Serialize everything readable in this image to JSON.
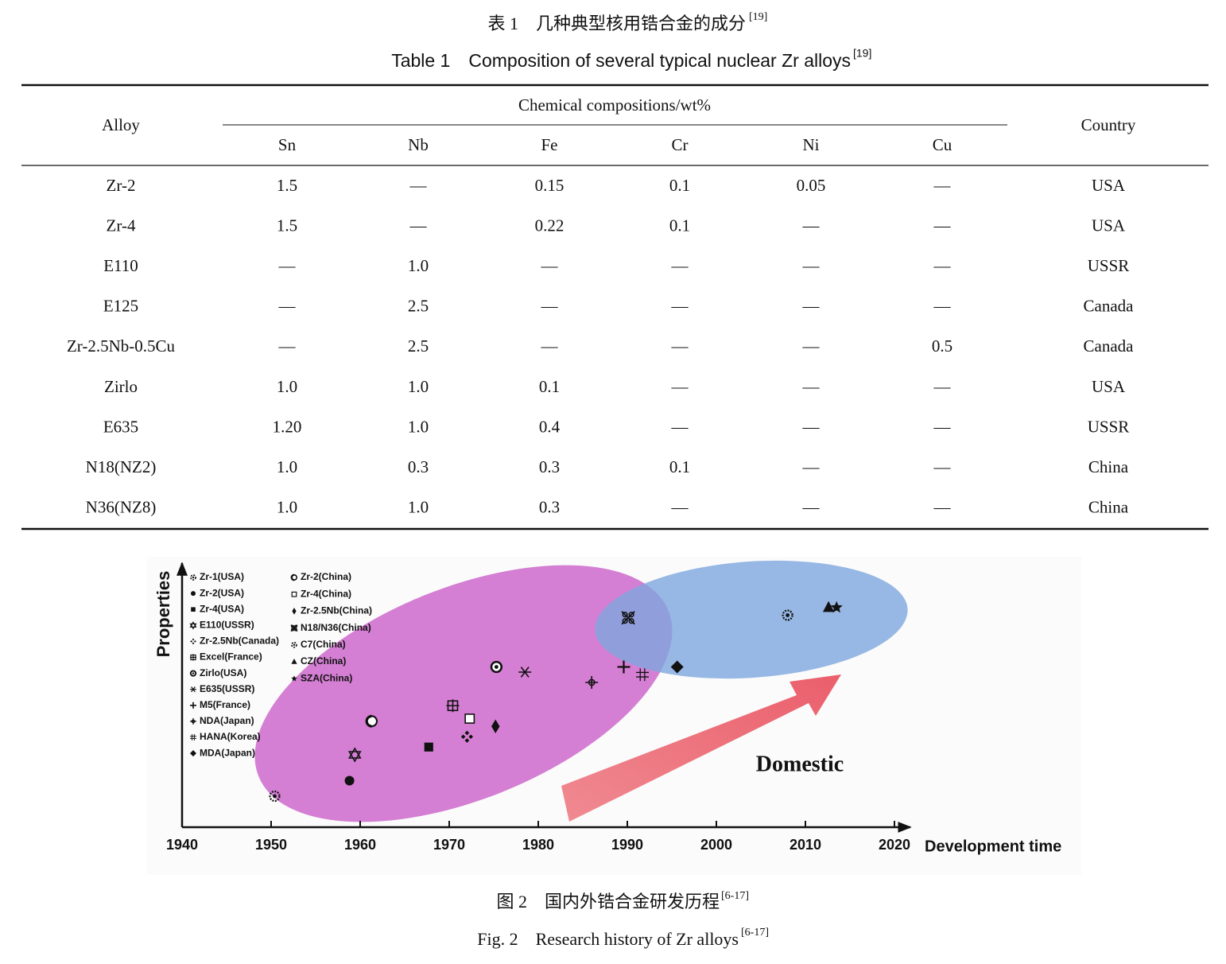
{
  "table": {
    "caption_zh": "表 1　几种典型核用锆合金的成分",
    "caption_zh_ref": "[19]",
    "caption_en": "Table 1　Composition of several typical nuclear Zr alloys",
    "caption_en_ref": "[19]",
    "header": {
      "alloy": "Alloy",
      "group": "Chemical compositions/wt%",
      "elements": [
        "Sn",
        "Nb",
        "Fe",
        "Cr",
        "Ni",
        "Cu"
      ],
      "country": "Country"
    },
    "rows": [
      [
        "Zr-2",
        "1.5",
        "—",
        "0.15",
        "0.1",
        "0.05",
        "—",
        "USA"
      ],
      [
        "Zr-4",
        "1.5",
        "—",
        "0.22",
        "0.1",
        "—",
        "—",
        "USA"
      ],
      [
        "E110",
        "—",
        "1.0",
        "—",
        "—",
        "—",
        "—",
        "USSR"
      ],
      [
        "E125",
        "—",
        "2.5",
        "—",
        "—",
        "—",
        "—",
        "Canada"
      ],
      [
        "Zr-2.5Nb-0.5Cu",
        "—",
        "2.5",
        "—",
        "—",
        "—",
        "0.5",
        "Canada"
      ],
      [
        "Zirlo",
        "1.0",
        "1.0",
        "0.1",
        "—",
        "—",
        "—",
        "USA"
      ],
      [
        "E635",
        "1.20",
        "1.0",
        "0.4",
        "—",
        "—",
        "—",
        "USSR"
      ],
      [
        "N18(NZ2)",
        "1.0",
        "0.3",
        "0.3",
        "0.1",
        "—",
        "—",
        "China"
      ],
      [
        "N36(NZ8)",
        "1.0",
        "1.0",
        "0.3",
        "—",
        "—",
        "—",
        "China"
      ]
    ]
  },
  "chart_data": {
    "type": "scatter",
    "x_label": "Development time",
    "y_label": "Properties",
    "annotation": "Domestic",
    "xlim": [
      1940,
      2020
    ],
    "xticks": [
      1940,
      1950,
      1960,
      1970,
      1980,
      1990,
      2000,
      2010,
      2020
    ],
    "ylim": [
      0,
      10
    ],
    "color": "#111111",
    "series": [
      {
        "name": "Zr-1(USA)",
        "x": [
          1950.4
        ],
        "values": [
          1.2
        ]
      },
      {
        "name": "Zr-2(USA)",
        "x": [
          1958.8
        ],
        "values": [
          1.8
        ]
      },
      {
        "name": "Zr-4(USA)",
        "x": [
          1967.7
        ],
        "values": [
          3.1
        ]
      },
      {
        "name": "E110(USSR)",
        "x": [
          1959.4
        ],
        "values": [
          2.8
        ]
      },
      {
        "name": "Zr-2.5Nb(Canada)",
        "x": [
          1972.0
        ],
        "values": [
          3.5
        ]
      },
      {
        "name": "Excel(France)",
        "x": [
          1970.4
        ],
        "values": [
          4.7
        ]
      },
      {
        "name": "Zirlo(USA)",
        "x": [
          1975.3
        ],
        "values": [
          6.2
        ]
      },
      {
        "name": "E635(USSR)",
        "x": [
          1978.5
        ],
        "values": [
          6.0
        ]
      },
      {
        "name": "M5(France)",
        "x": [
          1989.6
        ],
        "values": [
          6.2
        ]
      },
      {
        "name": "NDA(Japan)",
        "x": [
          1986.0
        ],
        "values": [
          5.6
        ]
      },
      {
        "name": "HANA(Korea)",
        "x": [
          1991.7
        ],
        "values": [
          5.9
        ]
      },
      {
        "name": "MDA(Japan)",
        "x": [
          1995.6
        ],
        "values": [
          6.2
        ]
      },
      {
        "name": "Zr-2(China)",
        "x": [
          1961.3
        ],
        "values": [
          4.1
        ]
      },
      {
        "name": "Zr-4(China)",
        "x": [
          1972.3
        ],
        "values": [
          4.2
        ]
      },
      {
        "name": "Zr-2.5Nb(China)",
        "x": [
          1975.2
        ],
        "values": [
          3.9
        ]
      },
      {
        "name": "N18/N36(China)",
        "x": [
          1990.1
        ],
        "values": [
          8.1
        ]
      },
      {
        "name": "C7(China)",
        "x": [
          2008.0
        ],
        "values": [
          8.2
        ]
      },
      {
        "name": "CZ(China)",
        "x": [
          2012.6
        ],
        "values": [
          8.5
        ]
      },
      {
        "name": "SZA(China)",
        "x": [
          2013.5
        ],
        "values": [
          8.5
        ]
      }
    ]
  },
  "figure": {
    "caption_zh": "图 2　国内外锆合金研发历程",
    "caption_zh_ref": "[6-17]",
    "caption_en": "Fig. 2　Research history of Zr alloys",
    "caption_en_ref": "[6-17]"
  }
}
